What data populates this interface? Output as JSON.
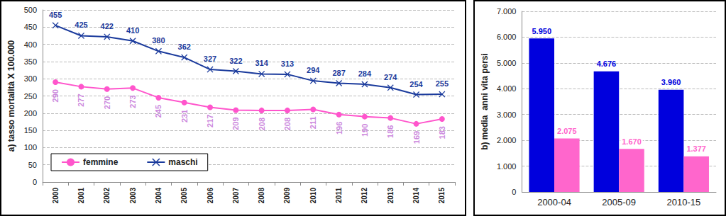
{
  "chart_data": [
    {
      "type": "line",
      "ylabel": "a) tasso mortalità X 100.000",
      "categories": [
        "2000",
        "2001",
        "2002",
        "2003",
        "2004",
        "2005",
        "2006",
        "2007",
        "2008",
        "2009",
        "2010",
        "2011",
        "2012",
        "2013",
        "2014",
        "2015"
      ],
      "series": [
        {
          "name": "femmine",
          "color": "#ff55cc",
          "marker": "circle",
          "values": [
            290,
            277,
            270,
            273,
            245,
            231,
            217,
            209,
            208,
            208,
            211,
            196,
            190,
            186,
            169,
            183
          ]
        },
        {
          "name": "maschi",
          "color": "#1a3a9c",
          "marker": "x",
          "values": [
            455,
            425,
            422,
            410,
            380,
            362,
            327,
            322,
            314,
            313,
            294,
            287,
            284,
            274,
            254,
            255
          ]
        }
      ],
      "ylim": [
        0,
        500
      ],
      "yticks": [
        0,
        50,
        100,
        150,
        200,
        250,
        300,
        350,
        400,
        450,
        500
      ],
      "grid": true,
      "legend": "lower left",
      "data_labels": true
    },
    {
      "type": "bar",
      "ylabel": "b) media  anni vita persi",
      "categories": [
        "2000-04",
        "2005-09",
        "2010-15"
      ],
      "series": [
        {
          "color": "#0000dd",
          "values": [
            5950,
            4676,
            3960
          ],
          "value_labels": [
            "5.950",
            "4.676",
            "3.960"
          ]
        },
        {
          "color": "#ff66cc",
          "values": [
            2075,
            1670,
            1377
          ],
          "value_labels": [
            "2.075",
            "1.670",
            "1.377"
          ]
        }
      ],
      "ylim": [
        0,
        7000
      ],
      "yticks": [
        0,
        {
          "value": 1000,
          "label": "1.000"
        },
        {
          "value": 2000,
          "label": "2.000"
        },
        {
          "value": 3000,
          "label": "3.000"
        },
        {
          "value": 4000,
          "label": "4.000"
        },
        {
          "value": 5000,
          "label": "5.000"
        },
        {
          "value": 6000,
          "label": "6.000"
        },
        {
          "value": 7000,
          "label": "7.000"
        }
      ],
      "grid": true,
      "data_labels": true
    }
  ]
}
